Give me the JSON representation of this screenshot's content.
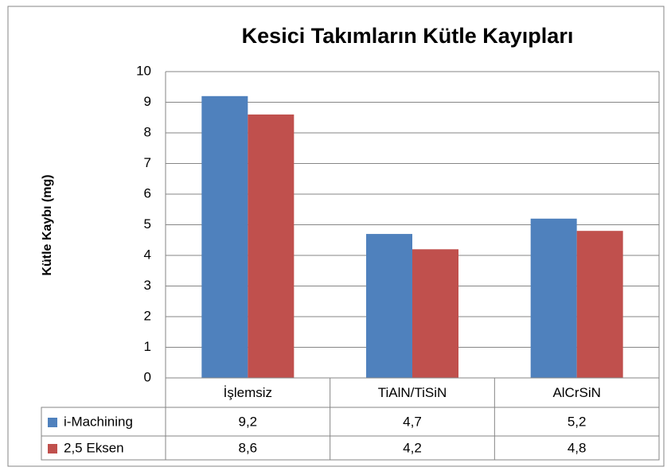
{
  "chart_data": {
    "type": "bar",
    "title": "Kesici Takımların Kütle Kayıpları",
    "y_label": "Kütle Kaybı (mg)",
    "categories": [
      "İşlemsiz",
      "TiAlN/TiSiN",
      "AlCrSiN"
    ],
    "series": [
      {
        "name": "i-Machining",
        "color": "#4f81bd",
        "values": [
          9.2,
          4.7,
          5.2
        ],
        "value_labels": [
          "9,2",
          "4,7",
          "5,2"
        ]
      },
      {
        "name": "2,5 Eksen",
        "color": "#c0504d",
        "values": [
          8.6,
          4.2,
          4.8
        ],
        "value_labels": [
          "8,6",
          "4,2",
          "4,8"
        ]
      }
    ],
    "ylim": [
      0,
      10
    ],
    "yticks": [
      0,
      1,
      2,
      3,
      4,
      5,
      6,
      7,
      8,
      9,
      10
    ],
    "grid": true
  }
}
